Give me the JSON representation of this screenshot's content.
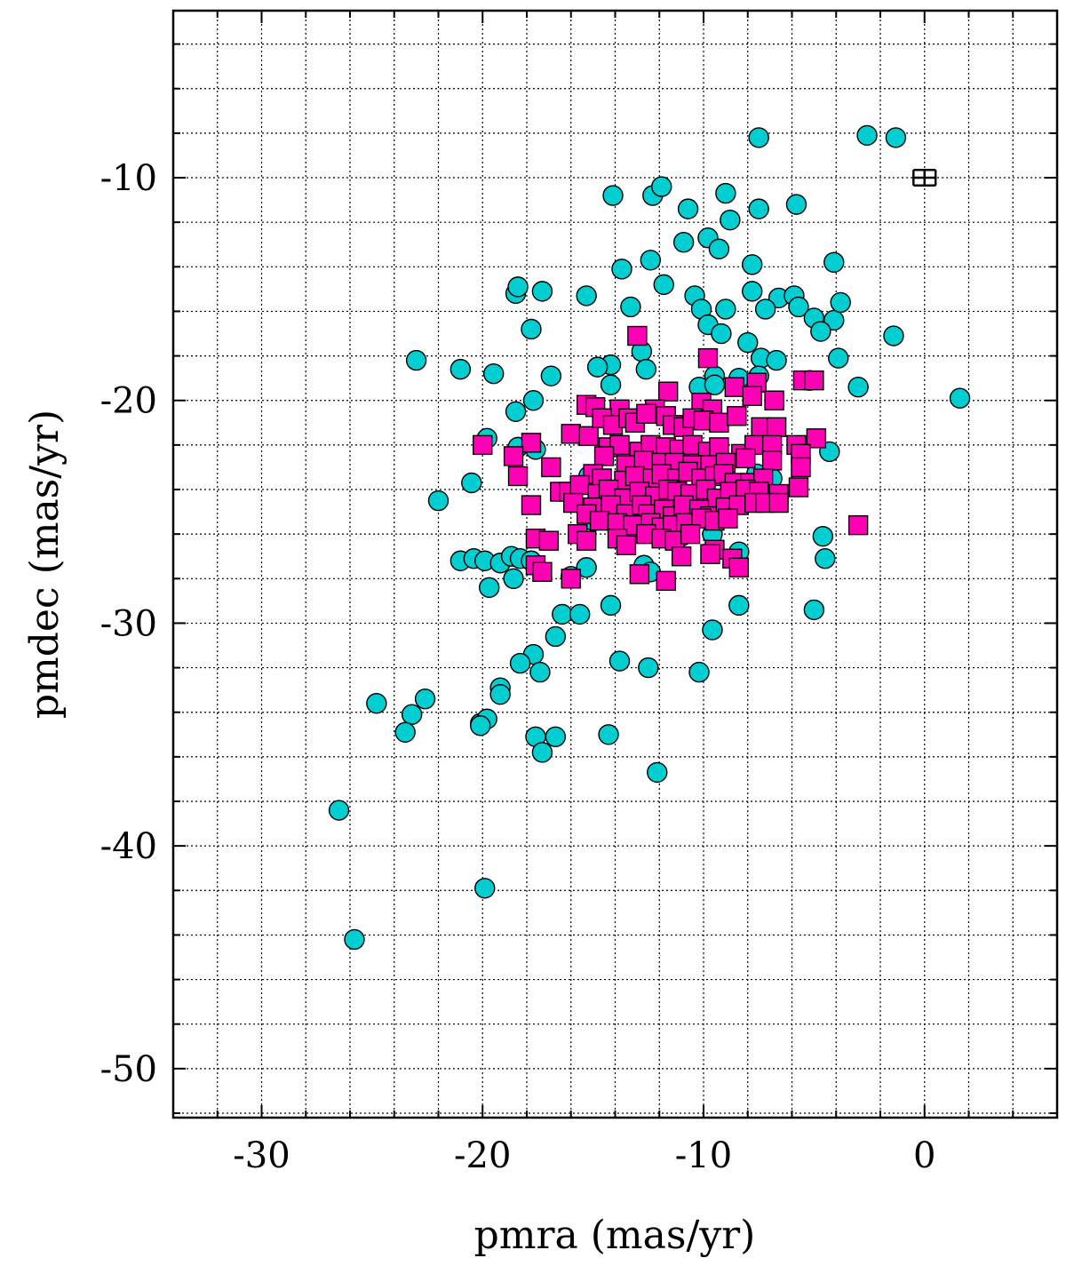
{
  "chart_data": {
    "type": "scatter",
    "title": "",
    "xlabel": "pmra (mas/yr)",
    "ylabel": "pmdec (mas/yr)",
    "xlim": [
      -34,
      6
    ],
    "ylim": [
      -52.2,
      -2.5
    ],
    "x_major_ticks": [
      -30,
      -20,
      -10,
      0
    ],
    "x_tick_labels": [
      "-30",
      "-20",
      "-10",
      "0"
    ],
    "y_major_ticks": [
      -50,
      -40,
      -30,
      -20,
      -10
    ],
    "y_tick_labels": [
      "-50",
      "-40",
      "-30",
      "-20",
      "-10"
    ],
    "x_minor_step": 2,
    "y_minor_step": 2,
    "grid": true,
    "colors": {
      "circle": "#00ced1",
      "square": "#ff00b4"
    },
    "error_bar": {
      "x": 0,
      "y": -10,
      "xerr": 0.5,
      "yerr": 0.35
    },
    "series": [
      {
        "marker": "circle",
        "points": [
          [
            -7.5,
            -8.2
          ],
          [
            -2.6,
            -8.1
          ],
          [
            -1.3,
            -8.2
          ],
          [
            -14.1,
            -10.8
          ],
          [
            -12.3,
            -10.8
          ],
          [
            -11.9,
            -10.4
          ],
          [
            -9.0,
            -10.7
          ],
          [
            -10.7,
            -11.4
          ],
          [
            -7.5,
            -11.4
          ],
          [
            -5.8,
            -11.2
          ],
          [
            -8.8,
            -11.9
          ],
          [
            -9.8,
            -12.7
          ],
          [
            -10.9,
            -12.9
          ],
          [
            -9.3,
            -13.2
          ],
          [
            -12.4,
            -13.7
          ],
          [
            -13.7,
            -14.1
          ],
          [
            -7.8,
            -13.9
          ],
          [
            -4.1,
            -13.8
          ],
          [
            -18.5,
            -15.2
          ],
          [
            -18.4,
            -14.9
          ],
          [
            -17.3,
            -15.1
          ],
          [
            -15.3,
            -15.3
          ],
          [
            -11.8,
            -14.8
          ],
          [
            -10.4,
            -15.3
          ],
          [
            -7.8,
            -15.1
          ],
          [
            -6.6,
            -15.4
          ],
          [
            -5.9,
            -15.3
          ],
          [
            -13.3,
            -15.8
          ],
          [
            -10.1,
            -15.9
          ],
          [
            -9.0,
            -15.9
          ],
          [
            -7.2,
            -15.9
          ],
          [
            -5.7,
            -15.8
          ],
          [
            -5.0,
            -16.3
          ],
          [
            -4.1,
            -16.4
          ],
          [
            -3.8,
            -15.6
          ],
          [
            -9.8,
            -16.6
          ],
          [
            -17.8,
            -16.8
          ],
          [
            -9.2,
            -17.0
          ],
          [
            -4.7,
            -16.9
          ],
          [
            -1.4,
            -17.1
          ],
          [
            -12.8,
            -17.8
          ],
          [
            -8.0,
            -17.4
          ],
          [
            -23.0,
            -18.2
          ],
          [
            -14.2,
            -18.4
          ],
          [
            -7.4,
            -18.1
          ],
          [
            -6.7,
            -18.2
          ],
          [
            -3.9,
            -18.1
          ],
          [
            -21.0,
            -18.6
          ],
          [
            -19.5,
            -18.8
          ],
          [
            -16.9,
            -18.9
          ],
          [
            -14.8,
            -18.5
          ],
          [
            -12.6,
            -18.6
          ],
          [
            -9.5,
            -18.9
          ],
          [
            -8.4,
            -19.0
          ],
          [
            -7.5,
            -18.9
          ],
          [
            -5.2,
            -19.1
          ],
          [
            -14.2,
            -19.3
          ],
          [
            -10.2,
            -19.4
          ],
          [
            -9.5,
            -19.3
          ],
          [
            -17.7,
            -20.0
          ],
          [
            -18.5,
            -20.5
          ],
          [
            1.6,
            -19.9
          ],
          [
            -3.0,
            -19.4
          ],
          [
            -19.8,
            -21.7
          ],
          [
            -18.4,
            -22.1
          ],
          [
            -17.6,
            -22.2
          ],
          [
            -4.3,
            -22.3
          ],
          [
            -22.0,
            -24.5
          ],
          [
            -20.5,
            -23.7
          ],
          [
            -15.2,
            -23.4
          ],
          [
            -7.6,
            -23.3
          ],
          [
            -6.9,
            -23.5
          ],
          [
            -13.5,
            -24.5
          ],
          [
            -12.7,
            -24.9
          ],
          [
            -10.8,
            -25.1
          ],
          [
            -9.5,
            -25.0
          ],
          [
            -15.0,
            -25.4
          ],
          [
            -12.0,
            -25.8
          ],
          [
            -11.0,
            -26.1
          ],
          [
            -9.6,
            -26.0
          ],
          [
            -4.6,
            -26.1
          ],
          [
            -21.0,
            -27.2
          ],
          [
            -20.4,
            -27.1
          ],
          [
            -19.9,
            -27.2
          ],
          [
            -19.2,
            -27.3
          ],
          [
            -18.7,
            -27.0
          ],
          [
            -18.3,
            -27.1
          ],
          [
            -17.8,
            -27.2
          ],
          [
            -15.3,
            -27.5
          ],
          [
            -12.7,
            -27.4
          ],
          [
            -8.4,
            -26.8
          ],
          [
            -4.5,
            -27.1
          ],
          [
            -18.6,
            -28.0
          ],
          [
            -16.0,
            -27.9
          ],
          [
            -12.4,
            -27.7
          ],
          [
            -19.7,
            -28.4
          ],
          [
            -16.4,
            -29.6
          ],
          [
            -15.6,
            -29.6
          ],
          [
            -14.2,
            -29.2
          ],
          [
            -8.4,
            -29.2
          ],
          [
            -5.0,
            -29.4
          ],
          [
            -16.7,
            -30.6
          ],
          [
            -9.6,
            -30.3
          ],
          [
            -17.7,
            -31.4
          ],
          [
            -18.3,
            -31.8
          ],
          [
            -13.8,
            -31.7
          ],
          [
            -17.4,
            -32.2
          ],
          [
            -12.5,
            -32.0
          ],
          [
            -10.2,
            -32.2
          ],
          [
            -19.2,
            -32.9
          ],
          [
            -19.2,
            -33.2
          ],
          [
            -24.8,
            -33.6
          ],
          [
            -22.6,
            -33.4
          ],
          [
            -23.2,
            -34.1
          ],
          [
            -20.1,
            -34.5
          ],
          [
            -19.8,
            -34.3
          ],
          [
            -20.1,
            -34.6
          ],
          [
            -23.5,
            -34.9
          ],
          [
            -17.6,
            -35.1
          ],
          [
            -16.7,
            -35.1
          ],
          [
            -14.3,
            -35.0
          ],
          [
            -17.3,
            -35.8
          ],
          [
            -12.1,
            -36.7
          ],
          [
            -26.5,
            -38.4
          ],
          [
            -19.9,
            -41.9
          ],
          [
            -25.8,
            -44.2
          ]
        ]
      },
      {
        "marker": "square",
        "points": [
          [
            -13.0,
            -17.1
          ],
          [
            -9.8,
            -18.1
          ],
          [
            -8.6,
            -19.4
          ],
          [
            -7.6,
            -19.2
          ],
          [
            -5.5,
            -19.1
          ],
          [
            -5.0,
            -19.1
          ],
          [
            -11.6,
            -19.6
          ],
          [
            -10.1,
            -20.1
          ],
          [
            -7.8,
            -19.8
          ],
          [
            -6.8,
            -20.0
          ],
          [
            -15.3,
            -20.2
          ],
          [
            -14.9,
            -20.3
          ],
          [
            -13.8,
            -20.4
          ],
          [
            -12.2,
            -20.4
          ],
          [
            -9.6,
            -20.4
          ],
          [
            -16.0,
            -21.5
          ],
          [
            -15.2,
            -21.6
          ],
          [
            -14.6,
            -20.8
          ],
          [
            -14.1,
            -21.1
          ],
          [
            -13.4,
            -20.8
          ],
          [
            -13.1,
            -21.0
          ],
          [
            -12.6,
            -20.6
          ],
          [
            -11.7,
            -20.7
          ],
          [
            -11.4,
            -21.1
          ],
          [
            -10.9,
            -21.2
          ],
          [
            -10.5,
            -20.8
          ],
          [
            -10.0,
            -20.9
          ],
          [
            -9.3,
            -21.0
          ],
          [
            -8.5,
            -20.7
          ],
          [
            -7.4,
            -21.2
          ],
          [
            -6.7,
            -21.2
          ],
          [
            -20.0,
            -22.0
          ],
          [
            -17.8,
            -21.9
          ],
          [
            -14.3,
            -22.1
          ],
          [
            -13.8,
            -22.0
          ],
          [
            -12.9,
            -22.3
          ],
          [
            -12.4,
            -22.0
          ],
          [
            -11.7,
            -22.1
          ],
          [
            -11.1,
            -22.2
          ],
          [
            -10.5,
            -22.0
          ],
          [
            -9.8,
            -22.3
          ],
          [
            -9.3,
            -22.1
          ],
          [
            -8.3,
            -22.4
          ],
          [
            -7.7,
            -22.0
          ],
          [
            -6.9,
            -22.0
          ],
          [
            -5.8,
            -22.0
          ],
          [
            -4.9,
            -21.7
          ],
          [
            -18.6,
            -22.5
          ],
          [
            -14.5,
            -22.5
          ],
          [
            -13.5,
            -22.9
          ],
          [
            -12.7,
            -22.7
          ],
          [
            -11.9,
            -22.8
          ],
          [
            -11.3,
            -22.8
          ],
          [
            -10.5,
            -22.9
          ],
          [
            -9.7,
            -22.9
          ],
          [
            -9.0,
            -22.8
          ],
          [
            -8.1,
            -22.6
          ],
          [
            -6.9,
            -22.7
          ],
          [
            -5.6,
            -22.4
          ],
          [
            -18.4,
            -23.4
          ],
          [
            -16.9,
            -23.0
          ],
          [
            -15.0,
            -23.3
          ],
          [
            -14.6,
            -23.5
          ],
          [
            -13.6,
            -23.6
          ],
          [
            -13.1,
            -23.4
          ],
          [
            -12.3,
            -23.5
          ],
          [
            -11.9,
            -23.3
          ],
          [
            -11.2,
            -23.5
          ],
          [
            -10.7,
            -23.2
          ],
          [
            -10.1,
            -23.5
          ],
          [
            -9.5,
            -23.4
          ],
          [
            -9.1,
            -23.3
          ],
          [
            -8.6,
            -23.7
          ],
          [
            -7.9,
            -23.7
          ],
          [
            -7.3,
            -23.5
          ],
          [
            -5.6,
            -23.0
          ],
          [
            -16.5,
            -24.1
          ],
          [
            -16.1,
            -24.1
          ],
          [
            -15.6,
            -23.8
          ],
          [
            -14.8,
            -24.2
          ],
          [
            -14.3,
            -24.0
          ],
          [
            -13.6,
            -24.4
          ],
          [
            -12.9,
            -24.1
          ],
          [
            -12.2,
            -24.3
          ],
          [
            -11.6,
            -24.0
          ],
          [
            -11.2,
            -24.1
          ],
          [
            -10.6,
            -24.2
          ],
          [
            -9.9,
            -24.0
          ],
          [
            -9.4,
            -24.4
          ],
          [
            -8.8,
            -24.1
          ],
          [
            -8.1,
            -24.0
          ],
          [
            -7.5,
            -24.1
          ],
          [
            -6.6,
            -24.2
          ],
          [
            -5.7,
            -23.9
          ],
          [
            -17.8,
            -24.7
          ],
          [
            -15.9,
            -24.6
          ],
          [
            -15.0,
            -24.8
          ],
          [
            -14.2,
            -24.7
          ],
          [
            -13.5,
            -25.1
          ],
          [
            -12.8,
            -24.7
          ],
          [
            -12.5,
            -25.1
          ],
          [
            -11.8,
            -24.9
          ],
          [
            -11.4,
            -25.2
          ],
          [
            -10.9,
            -24.7
          ],
          [
            -10.2,
            -24.9
          ],
          [
            -9.7,
            -25.2
          ],
          [
            -9.0,
            -24.8
          ],
          [
            -8.4,
            -24.7
          ],
          [
            -7.7,
            -24.6
          ],
          [
            -7.2,
            -24.6
          ],
          [
            -6.6,
            -24.6
          ],
          [
            -15.3,
            -25.1
          ],
          [
            -14.7,
            -25.4
          ],
          [
            -13.9,
            -25.5
          ],
          [
            -13.2,
            -25.6
          ],
          [
            -12.4,
            -25.5
          ],
          [
            -11.9,
            -25.7
          ],
          [
            -11.4,
            -25.6
          ],
          [
            -10.8,
            -25.5
          ],
          [
            -10.1,
            -25.3
          ],
          [
            -9.5,
            -25.4
          ],
          [
            -8.9,
            -25.3
          ],
          [
            -3.0,
            -25.6
          ],
          [
            -15.7,
            -26.0
          ],
          [
            -15.3,
            -26.3
          ],
          [
            -13.9,
            -26.2
          ],
          [
            -13.5,
            -26.5
          ],
          [
            -12.6,
            -26.0
          ],
          [
            -11.9,
            -26.2
          ],
          [
            -11.3,
            -26.3
          ],
          [
            -10.6,
            -26.0
          ],
          [
            -17.6,
            -26.2
          ],
          [
            -17.0,
            -26.3
          ],
          [
            -9.5,
            -26.7
          ],
          [
            -8.7,
            -27.1
          ],
          [
            -9.7,
            -26.9
          ],
          [
            -11.0,
            -27.0
          ],
          [
            -17.6,
            -27.4
          ],
          [
            -17.3,
            -27.7
          ],
          [
            -16.0,
            -28.0
          ],
          [
            -12.9,
            -27.8
          ],
          [
            -11.7,
            -28.1
          ],
          [
            -8.4,
            -27.5
          ]
        ]
      }
    ]
  }
}
